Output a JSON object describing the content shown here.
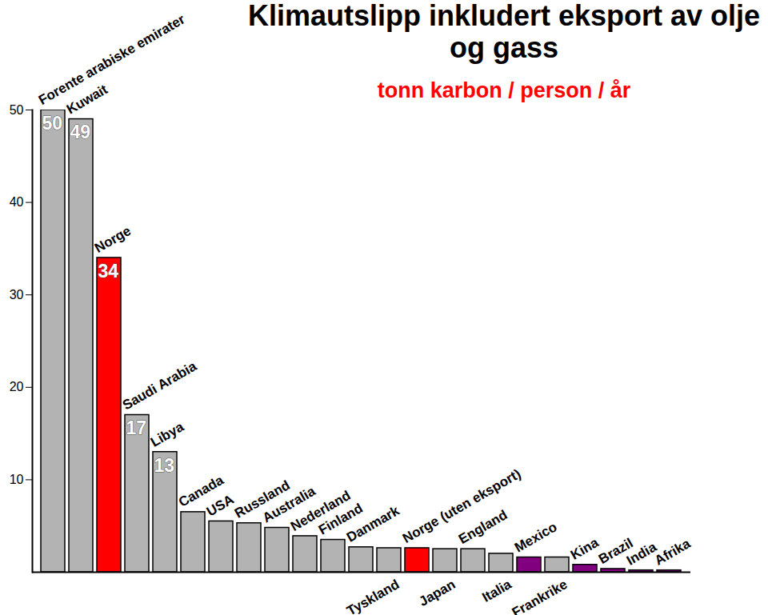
{
  "chart_data": {
    "type": "bar",
    "title": "Klimautslipp inkludert eksport av olje og gass",
    "subtitle": "tonn karbon / person / år",
    "categories": [
      "Forente arabiske emirater",
      "Kuwait",
      "Norge",
      "Saudi Arabia",
      "Libya",
      "Canada",
      "USA",
      "Russland",
      "Australia",
      "Nederland",
      "Finland",
      "Danmark",
      "Tyskland",
      "Norge (uten eksport)",
      "Japan",
      "England",
      "Italia",
      "Mexico",
      "Frankrike",
      "Kina",
      "Brazil",
      "India",
      "Afrika"
    ],
    "values": [
      50,
      49,
      34,
      17,
      13,
      6.5,
      5.5,
      5.3,
      4.8,
      3.9,
      3.5,
      2.7,
      2.6,
      2.6,
      2.5,
      2.5,
      2.0,
      1.6,
      1.6,
      0.8,
      0.35,
      0.2,
      0.2
    ],
    "value_labels": [
      "50",
      "49",
      "34",
      "17",
      "13",
      null,
      null,
      null,
      null,
      null,
      null,
      null,
      null,
      null,
      null,
      null,
      null,
      null,
      null,
      null,
      null,
      null,
      null
    ],
    "colors": [
      "#b3b3b3",
      "#b3b3b3",
      "#ff0000",
      "#b3b3b3",
      "#b3b3b3",
      "#b3b3b3",
      "#b3b3b3",
      "#b3b3b3",
      "#b3b3b3",
      "#b3b3b3",
      "#b3b3b3",
      "#b3b3b3",
      "#b3b3b3",
      "#ff0000",
      "#b3b3b3",
      "#b3b3b3",
      "#b3b3b3",
      "#800080",
      "#b3b3b3",
      "#800080",
      "#800080",
      "#800080",
      "#800080"
    ],
    "data_labels": true,
    "ylim": [
      0,
      50
    ],
    "yticks": [
      10,
      20,
      30,
      40,
      50
    ],
    "grid": false
  }
}
